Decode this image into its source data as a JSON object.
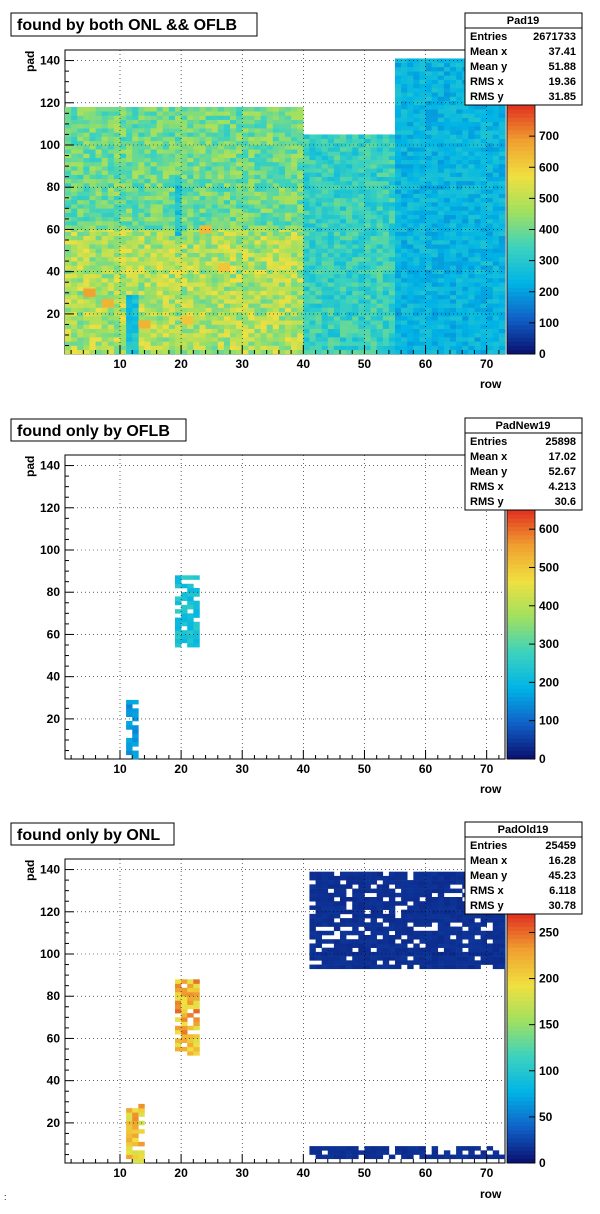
{
  "corner_mark": ":",
  "panels": [
    {
      "title": "found by both ONL && OFLB",
      "stats": {
        "name": "Pad19",
        "rows": [
          {
            "label": "Entries",
            "value": "2671733"
          },
          {
            "label": "Mean x",
            "value": "37.41"
          },
          {
            "label": "Mean y",
            "value": "51.88"
          },
          {
            "label": "RMS x",
            "value": "19.36"
          },
          {
            "label": "RMS y",
            "value": "31.85"
          }
        ]
      }
    },
    {
      "title": "found only by OFLB",
      "stats": {
        "name": "PadNew19",
        "rows": [
          {
            "label": "Entries",
            "value": "25898"
          },
          {
            "label": "Mean x",
            "value": "17.02"
          },
          {
            "label": "Mean y",
            "value": "52.67"
          },
          {
            "label": "RMS x",
            "value": "4.213"
          },
          {
            "label": "RMS y",
            "value": "30.6"
          }
        ]
      }
    },
    {
      "title": "found only by ONL",
      "stats": {
        "name": "PadOld19",
        "rows": [
          {
            "label": "Entries",
            "value": "25459"
          },
          {
            "label": "Mean x",
            "value": "16.28"
          },
          {
            "label": "Mean y",
            "value": "45.23"
          },
          {
            "label": "RMS x",
            "value": "6.118"
          },
          {
            "label": "RMS y",
            "value": "30.78"
          }
        ]
      }
    }
  ],
  "chart_data": [
    {
      "type": "heatmap",
      "title": "found by both ONL && OFLB",
      "xlabel": "row",
      "ylabel": "pad",
      "xlim": [
        1,
        73
      ],
      "ylim": [
        1,
        145
      ],
      "xticks": [
        10,
        20,
        30,
        40,
        50,
        60,
        70
      ],
      "yticks": [
        20,
        40,
        60,
        80,
        100,
        120,
        140
      ],
      "zlim": [
        0,
        800
      ],
      "zticks": [
        0,
        100,
        200,
        300,
        400,
        500,
        600,
        700
      ],
      "grid": true,
      "colormap": [
        "#0a0f6e",
        "#1060c8",
        "#00b4e6",
        "#3cd2be",
        "#a0e060",
        "#f0e040",
        "#f0a030",
        "#e03020"
      ],
      "regions": [
        {
          "rows": [
            1,
            40
          ],
          "pads": [
            1,
            60
          ],
          "value": 480
        },
        {
          "rows": [
            1,
            40
          ],
          "pads": [
            60,
            118
          ],
          "value": 400
        },
        {
          "rows": [
            40,
            55
          ],
          "pads": [
            1,
            105
          ],
          "value": 330
        },
        {
          "rows": [
            55,
            73
          ],
          "pads": [
            1,
            140
          ],
          "value": 240
        },
        {
          "rows": [
            11,
            13
          ],
          "pads": [
            1,
            28
          ],
          "value": 280
        },
        {
          "rows": [
            19,
            20
          ],
          "pads": [
            57,
            84
          ],
          "value": 280
        }
      ],
      "hot_spots": [
        {
          "row": 4,
          "pad": 28,
          "value": 680
        },
        {
          "row": 7,
          "pad": 23,
          "value": 650
        },
        {
          "row": 13,
          "pad": 13,
          "value": 650
        },
        {
          "row": 20,
          "pad": 15,
          "value": 620
        },
        {
          "row": 23,
          "pad": 58,
          "value": 640
        },
        {
          "row": 26,
          "pad": 40,
          "value": 620
        }
      ]
    },
    {
      "type": "heatmap",
      "title": "found only by OFLB",
      "xlabel": "row",
      "ylabel": "pad",
      "xlim": [
        1,
        73
      ],
      "ylim": [
        1,
        145
      ],
      "xticks": [
        10,
        20,
        30,
        40,
        50,
        60,
        70
      ],
      "yticks": [
        20,
        40,
        60,
        80,
        100,
        120,
        140
      ],
      "zlim": [
        0,
        650
      ],
      "zticks": [
        0,
        100,
        200,
        300,
        400,
        500,
        600
      ],
      "grid": true,
      "colormap": [
        "#0a0f6e",
        "#1060c8",
        "#00b4e6",
        "#3cd2be",
        "#a0e060",
        "#f0e040",
        "#f0a030",
        "#e03020"
      ],
      "regions": [
        {
          "rows": [
            11,
            13
          ],
          "pads": [
            1,
            28
          ],
          "value": 150
        },
        {
          "rows": [
            19,
            23
          ],
          "pads": [
            54,
            87
          ],
          "value": 220
        }
      ]
    },
    {
      "type": "heatmap",
      "title": "found only by ONL",
      "xlabel": "row",
      "ylabel": "pad",
      "xlim": [
        1,
        73
      ],
      "ylim": [
        1,
        145
      ],
      "xticks": [
        10,
        20,
        30,
        40,
        50,
        60,
        70
      ],
      "yticks": [
        20,
        40,
        60,
        80,
        100,
        120,
        140
      ],
      "zlim": [
        0,
        270
      ],
      "zticks": [
        0,
        50,
        100,
        150,
        200,
        250
      ],
      "grid": true,
      "colormap": [
        "#0a0f6e",
        "#1060c8",
        "#00b4e6",
        "#3cd2be",
        "#a0e060",
        "#f0e040",
        "#f0a030",
        "#e03020"
      ],
      "regions": [
        {
          "rows": [
            11,
            14
          ],
          "pads": [
            1,
            28
          ],
          "value": 200
        },
        {
          "rows": [
            19,
            23
          ],
          "pads": [
            52,
            87
          ],
          "value": 210
        },
        {
          "rows": [
            41,
            73
          ],
          "pads": [
            3,
            8
          ],
          "value": 15
        },
        {
          "rows": [
            41,
            73
          ],
          "pads": [
            93,
            138
          ],
          "value": 15
        }
      ]
    }
  ]
}
